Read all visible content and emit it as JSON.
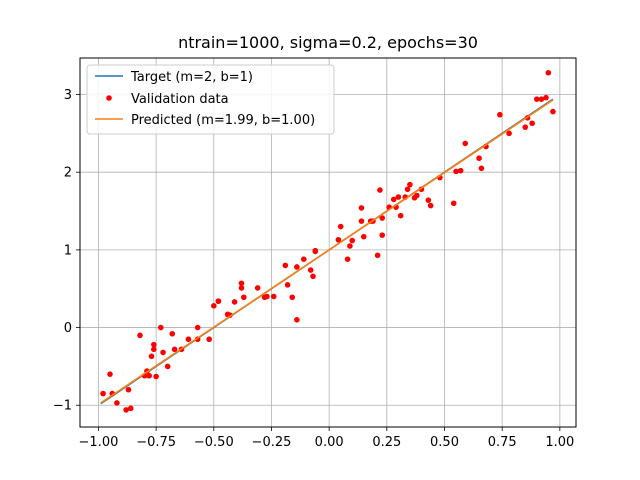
{
  "chart_data": {
    "type": "scatter",
    "title": "ntrain=1000, sigma=0.2, epochs=30",
    "xlabel": "",
    "ylabel": "",
    "xlim": [
      -1.08,
      1.07
    ],
    "ylim": [
      -1.28,
      3.47
    ],
    "xticks": [
      "−1.00",
      "−0.75",
      "−0.50",
      "−0.25",
      "0.00",
      "0.25",
      "0.50",
      "0.75",
      "1.00"
    ],
    "xtick_values": [
      -1.0,
      -0.75,
      -0.5,
      -0.25,
      0.0,
      0.25,
      0.5,
      0.75,
      1.0
    ],
    "yticks": [
      "−1",
      "0",
      "1",
      "2",
      "3"
    ],
    "ytick_values": [
      -1,
      0,
      1,
      2,
      3
    ],
    "grid": true,
    "legend_position": "upper-left",
    "colors": {
      "target": "#1f77b4",
      "validation": "#ff0000",
      "predicted": "#ff7f0e"
    },
    "series": [
      {
        "name": "Target (m=2, b=1)",
        "kind": "line",
        "x": [
          -0.99,
          0.97
        ],
        "y": [
          -0.98,
          2.94
        ]
      },
      {
        "name": "Validation data",
        "kind": "scatter",
        "x": [
          -0.98,
          -0.95,
          -0.94,
          -0.92,
          -0.88,
          -0.87,
          -0.86,
          -0.82,
          -0.8,
          -0.79,
          -0.78,
          -0.77,
          -0.76,
          -0.76,
          -0.75,
          -0.73,
          -0.72,
          -0.7,
          -0.68,
          -0.67,
          -0.64,
          -0.61,
          -0.57,
          -0.57,
          -0.52,
          -0.5,
          -0.48,
          -0.48,
          -0.44,
          -0.43,
          -0.41,
          -0.38,
          -0.38,
          -0.37,
          -0.31,
          -0.28,
          -0.27,
          -0.24,
          -0.19,
          -0.18,
          -0.16,
          -0.14,
          -0.14,
          -0.11,
          -0.08,
          -0.07,
          -0.06,
          -0.06,
          0.04,
          0.05,
          0.08,
          0.09,
          0.1,
          0.14,
          0.14,
          0.15,
          0.18,
          0.19,
          0.21,
          0.22,
          0.23,
          0.23,
          0.26,
          0.28,
          0.29,
          0.3,
          0.31,
          0.33,
          0.34,
          0.35,
          0.37,
          0.38,
          0.4,
          0.43,
          0.44,
          0.48,
          0.54,
          0.55,
          0.57,
          0.59,
          0.65,
          0.66,
          0.68,
          0.74,
          0.78,
          0.85,
          0.86,
          0.88,
          0.9,
          0.92,
          0.94,
          0.95,
          0.97
        ],
        "y": [
          -0.85,
          -0.6,
          -0.85,
          -0.97,
          -1.06,
          -0.8,
          -1.04,
          -0.1,
          -0.62,
          -0.56,
          -0.62,
          -0.37,
          -0.28,
          -0.22,
          -0.63,
          0.0,
          -0.32,
          -0.5,
          -0.08,
          -0.28,
          -0.28,
          -0.15,
          0.0,
          -0.15,
          -0.15,
          0.28,
          0.34,
          0.34,
          0.17,
          0.16,
          0.33,
          0.51,
          0.57,
          0.39,
          0.51,
          0.39,
          0.4,
          0.4,
          0.8,
          0.55,
          0.39,
          0.1,
          0.78,
          0.88,
          0.74,
          0.66,
          0.98,
          0.99,
          1.13,
          1.3,
          0.88,
          1.05,
          1.12,
          1.37,
          1.54,
          1.17,
          1.37,
          1.37,
          0.93,
          1.77,
          1.41,
          1.19,
          1.55,
          1.65,
          1.55,
          1.68,
          1.44,
          1.68,
          1.78,
          1.84,
          1.67,
          1.7,
          1.78,
          1.64,
          1.57,
          1.93,
          1.6,
          2.01,
          2.02,
          2.37,
          2.18,
          2.05,
          2.33,
          2.74,
          2.5,
          2.58,
          2.7,
          2.63,
          2.94,
          2.94,
          2.96,
          3.28,
          2.78
        ]
      },
      {
        "name": "Predicted (m=1.99, b=1.00)",
        "kind": "line",
        "x": [
          -0.99,
          0.97
        ],
        "y": [
          -0.97,
          2.93
        ]
      }
    ]
  }
}
